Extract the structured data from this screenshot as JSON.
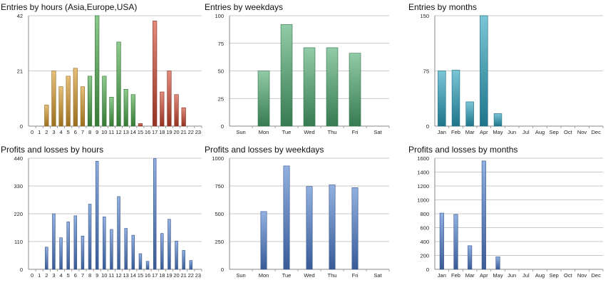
{
  "chart_data": [
    {
      "id": "entries-hours",
      "type": "bar",
      "title": "Entries by hours (Asia,Europe,USA)",
      "categories": [
        "0",
        "1",
        "2",
        "3",
        "4",
        "5",
        "6",
        "7",
        "8",
        "9",
        "10",
        "11",
        "12",
        "13",
        "14",
        "15",
        "16",
        "17",
        "18",
        "19",
        "20",
        "21",
        "22",
        "23"
      ],
      "values": [
        0,
        0,
        8,
        21,
        15,
        19,
        22,
        15,
        19,
        42,
        19,
        11,
        32,
        14,
        12,
        1,
        0,
        40,
        13,
        21,
        12,
        7,
        0,
        0
      ],
      "ylim": [
        0,
        42
      ],
      "yticks": [
        "0",
        "21",
        "42"
      ],
      "xlabel": "",
      "ylabel": "",
      "series_colors": [
        "#d89a2a",
        "#d89a2a",
        "#d89a2a",
        "#d89a2a",
        "#d89a2a",
        "#d89a2a",
        "#d89a2a",
        "#d89a2a",
        "#4aaa4a",
        "#4aaa4a",
        "#4aaa4a",
        "#4aaa4a",
        "#4aaa4a",
        "#4aaa4a",
        "#4aaa4a",
        "#d0462f",
        "#d0462f",
        "#d0462f",
        "#d0462f",
        "#d0462f",
        "#d0462f",
        "#d0462f",
        "#d0462f",
        "#d0462f"
      ]
    },
    {
      "id": "entries-weekdays",
      "type": "bar",
      "title": "Entries by weekdays",
      "categories": [
        "Sun",
        "Mon",
        "Tue",
        "Wed",
        "Thu",
        "Fri",
        "Sat"
      ],
      "values": [
        0,
        50,
        92,
        71,
        71,
        66,
        0
      ],
      "ylim": [
        0,
        100
      ],
      "yticks": [
        "0",
        "25",
        "50",
        "75",
        "100"
      ],
      "xlabel": "",
      "ylabel": "",
      "color": "#4dab72"
    },
    {
      "id": "entries-months",
      "type": "bar",
      "title": "Entries by months",
      "categories": [
        "Jan",
        "Feb",
        "Mar",
        "Apr",
        "May",
        "Jun",
        "Jul",
        "Aug",
        "Sep",
        "Oct",
        "Nov",
        "Dec"
      ],
      "values": [
        75,
        76,
        33,
        150,
        17,
        0,
        0,
        0,
        0,
        0,
        0,
        0
      ],
      "ylim": [
        0,
        150
      ],
      "yticks": [
        "0",
        "75",
        "150"
      ],
      "xlabel": "",
      "ylabel": "",
      "color": "#2aa3bf"
    },
    {
      "id": "profits-hours",
      "type": "bar",
      "title": "Profits and losses by hours",
      "categories": [
        "0",
        "1",
        "2",
        "3",
        "4",
        "5",
        "6",
        "7",
        "8",
        "9",
        "10",
        "11",
        "12",
        "13",
        "14",
        "15",
        "16",
        "17",
        "18",
        "19",
        "20",
        "21",
        "22",
        "23"
      ],
      "values": [
        0,
        0,
        88,
        220,
        125,
        188,
        212,
        132,
        258,
        428,
        208,
        158,
        288,
        162,
        135,
        62,
        32,
        438,
        142,
        198,
        112,
        75,
        35,
        0
      ],
      "ylim": [
        0,
        440
      ],
      "yticks": [
        "0",
        "110",
        "220",
        "330",
        "440"
      ],
      "xlabel": "",
      "ylabel": "",
      "color": "#4f7fd0"
    },
    {
      "id": "profits-weekdays",
      "type": "bar",
      "title": "Profits and losses by weekdays",
      "categories": [
        "Sun",
        "Mon",
        "Tue",
        "Wed",
        "Thu",
        "Fri",
        "Sat"
      ],
      "values": [
        0,
        520,
        930,
        745,
        760,
        735,
        0
      ],
      "ylim": [
        0,
        1000
      ],
      "yticks": [
        "0",
        "250",
        "500",
        "750",
        "1000"
      ],
      "xlabel": "",
      "ylabel": "",
      "color": "#4f7fd0"
    },
    {
      "id": "profits-months",
      "type": "bar",
      "title": "Profits and losses by months",
      "categories": [
        "Jan",
        "Feb",
        "Mar",
        "Apr",
        "May",
        "Jun",
        "Jul",
        "Aug",
        "Sep",
        "Oct",
        "Nov",
        "Dec"
      ],
      "values": [
        810,
        790,
        340,
        1560,
        180,
        0,
        0,
        0,
        0,
        0,
        0,
        0
      ],
      "ylim": [
        0,
        1600
      ],
      "yticks": [
        "0",
        "200",
        "400",
        "600",
        "800",
        "1000",
        "1200",
        "1400",
        "1600"
      ],
      "xlabel": "",
      "ylabel": "",
      "color": "#4f7fd0"
    }
  ]
}
